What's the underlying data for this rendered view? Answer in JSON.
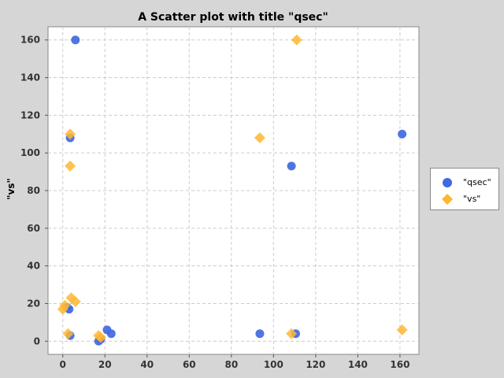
{
  "chart_data": {
    "type": "scatter",
    "title": "A Scatter plot with title \"qsec\"",
    "xlabel": "",
    "ylabel": "\"vs\"",
    "xlim": [
      -7,
      169
    ],
    "ylim": [
      -7,
      167
    ],
    "x_ticks": [
      0,
      20,
      40,
      60,
      80,
      100,
      120,
      140,
      160
    ],
    "y_ticks": [
      0,
      20,
      40,
      60,
      80,
      100,
      120,
      140,
      160
    ],
    "grid": true,
    "legend_position": "right",
    "series": [
      {
        "name": "\"qsec\"",
        "marker": "circle",
        "color": "#4169e1",
        "points": [
          [
            6,
            160
          ],
          [
            3.5,
            108
          ],
          [
            108.5,
            93
          ],
          [
            161,
            110
          ],
          [
            3,
            17
          ],
          [
            2,
            18
          ],
          [
            3.5,
            3
          ],
          [
            17,
            0
          ],
          [
            18,
            1
          ],
          [
            21,
            6
          ],
          [
            23,
            4
          ],
          [
            93.5,
            4
          ],
          [
            110.5,
            4
          ]
        ]
      },
      {
        "name": "\"vs\"",
        "marker": "diamond",
        "color": "#ffb732",
        "points": [
          [
            111,
            160
          ],
          [
            93.5,
            108
          ],
          [
            3.5,
            110
          ],
          [
            3.5,
            93
          ],
          [
            0,
            17
          ],
          [
            1,
            19
          ],
          [
            4,
            23
          ],
          [
            6,
            21
          ],
          [
            2.5,
            4
          ],
          [
            17,
            3
          ],
          [
            18,
            2
          ],
          [
            108.5,
            4
          ],
          [
            161,
            6
          ]
        ]
      }
    ]
  }
}
